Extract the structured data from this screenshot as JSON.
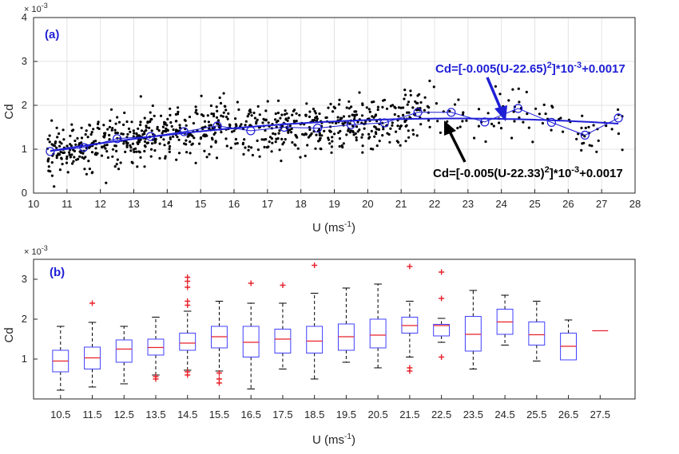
{
  "colors": {
    "fit": "#1f1fd6",
    "points": "#000000",
    "grid": "#e3e3e3",
    "box": "#4040ff",
    "median": "#e8222a",
    "outlier": "#e8222a",
    "whisker": "#000000",
    "annot_blue": "#1f1fd6",
    "annot_black": "#000000"
  },
  "chart_data": [
    {
      "type": "scatter",
      "panel_label": "(a)",
      "xlabel": "U (ms",
      "xlabel_sup": "-1",
      "xlabel_close": ")",
      "ylabel": "Cd",
      "y_exponent_base": "× 10",
      "y_exponent": "-3",
      "xlim": [
        10,
        28
      ],
      "ylim": [
        0,
        4
      ],
      "x_ticks": [
        "10",
        "11",
        "12",
        "13",
        "14",
        "15",
        "16",
        "17",
        "18",
        "19",
        "20",
        "21",
        "22",
        "23",
        "24",
        "25",
        "26",
        "27",
        "28"
      ],
      "y_ticks": [
        "0",
        "1",
        "2",
        "3",
        "4"
      ],
      "grid": true,
      "scatter_seed": 12345,
      "scatter_count": 900,
      "bin_means": {
        "x": [
          10.5,
          11.5,
          12.5,
          13.5,
          14.5,
          15.5,
          16.5,
          17.5,
          18.5,
          19.5,
          20.5,
          21.5,
          22.5,
          23.5,
          24.5,
          25.5,
          26.5,
          27.5
        ],
        "y": [
          0.95,
          1.04,
          1.24,
          1.29,
          1.4,
          1.53,
          1.42,
          1.5,
          1.48,
          1.56,
          1.6,
          1.84,
          1.84,
          1.62,
          1.93,
          1.61,
          1.32,
          1.71
        ]
      },
      "fit_curves": [
        {
          "label_parts": [
            "Cd=[-0.005(U-22.65)",
            "2",
            "]*10",
            "-3",
            "+0.0017"
          ],
          "vertex_x": 22.65,
          "a": -0.005,
          "c": 1.7,
          "color_key": "annot_blue"
        },
        {
          "label_parts": [
            "Cd=[-0.005(U-22.33)",
            "2",
            "]*10",
            "-3",
            "+0.0017"
          ],
          "vertex_x": 22.33,
          "a": -0.005,
          "c": 1.7,
          "color_key": "annot_black"
        }
      ]
    },
    {
      "type": "box",
      "panel_label": "(b)",
      "xlabel": "U (ms",
      "xlabel_sup": "-1",
      "xlabel_close": ")",
      "ylabel": "Cd",
      "y_exponent_base": "× 10",
      "y_exponent": "-3",
      "ylim": [
        0,
        3.5
      ],
      "y_ticks": [
        "1",
        "2",
        "3"
      ],
      "categories": [
        "10.5",
        "11.5",
        "12.5",
        "13.5",
        "14.5",
        "15.5",
        "16.5",
        "17.5",
        "18.5",
        "19.5",
        "20.5",
        "21.5",
        "22.5",
        "23.5",
        "24.5",
        "25.5",
        "26.5",
        "27.5"
      ],
      "boxes": [
        {
          "min": 0.22,
          "q1": 0.68,
          "median": 0.95,
          "q3": 1.22,
          "max": 1.82,
          "outliers": []
        },
        {
          "min": 0.3,
          "q1": 0.75,
          "median": 1.03,
          "q3": 1.3,
          "max": 1.92,
          "outliers": [
            2.4
          ]
        },
        {
          "min": 0.38,
          "q1": 0.92,
          "median": 1.25,
          "q3": 1.48,
          "max": 1.82,
          "outliers": []
        },
        {
          "min": 0.6,
          "q1": 1.1,
          "median": 1.29,
          "q3": 1.5,
          "max": 2.05,
          "outliers": [
            0.5,
            0.56
          ]
        },
        {
          "min": 0.72,
          "q1": 1.22,
          "median": 1.4,
          "q3": 1.65,
          "max": 2.2,
          "outliers": [
            0.6,
            0.68,
            2.35,
            2.45,
            2.8,
            2.95,
            3.05
          ]
        },
        {
          "min": 0.7,
          "q1": 1.28,
          "median": 1.56,
          "q3": 1.82,
          "max": 2.45,
          "outliers": [
            0.4,
            0.5,
            0.65
          ]
        },
        {
          "min": 0.25,
          "q1": 1.05,
          "median": 1.42,
          "q3": 1.82,
          "max": 2.4,
          "outliers": [
            2.9
          ]
        },
        {
          "min": 0.75,
          "q1": 1.15,
          "median": 1.5,
          "q3": 1.75,
          "max": 2.4,
          "outliers": [
            2.85
          ]
        },
        {
          "min": 0.5,
          "q1": 1.15,
          "median": 1.45,
          "q3": 1.82,
          "max": 2.65,
          "outliers": [
            3.35
          ]
        },
        {
          "min": 0.92,
          "q1": 1.22,
          "median": 1.56,
          "q3": 1.88,
          "max": 2.78,
          "outliers": []
        },
        {
          "min": 0.78,
          "q1": 1.28,
          "median": 1.6,
          "q3": 2.0,
          "max": 2.88,
          "outliers": []
        },
        {
          "min": 1.05,
          "q1": 1.65,
          "median": 1.84,
          "q3": 2.05,
          "max": 2.45,
          "outliers": [
            0.7,
            0.78,
            3.32
          ]
        },
        {
          "min": 1.42,
          "q1": 1.58,
          "median": 1.84,
          "q3": 1.87,
          "max": 2.02,
          "outliers": [
            1.05,
            2.52,
            3.18
          ]
        },
        {
          "min": 0.75,
          "q1": 1.2,
          "median": 1.62,
          "q3": 2.07,
          "max": 2.72,
          "outliers": []
        },
        {
          "min": 1.35,
          "q1": 1.62,
          "median": 1.93,
          "q3": 2.25,
          "max": 2.6,
          "outliers": []
        },
        {
          "min": 0.95,
          "q1": 1.35,
          "median": 1.61,
          "q3": 1.93,
          "max": 2.45,
          "outliers": []
        },
        {
          "min": 0.98,
          "q1": 0.98,
          "median": 1.32,
          "q3": 1.65,
          "max": 1.98,
          "outliers": []
        },
        {
          "min": 1.71,
          "q1": 1.71,
          "median": 1.71,
          "q3": 1.71,
          "max": 1.71,
          "outliers": []
        }
      ]
    }
  ]
}
